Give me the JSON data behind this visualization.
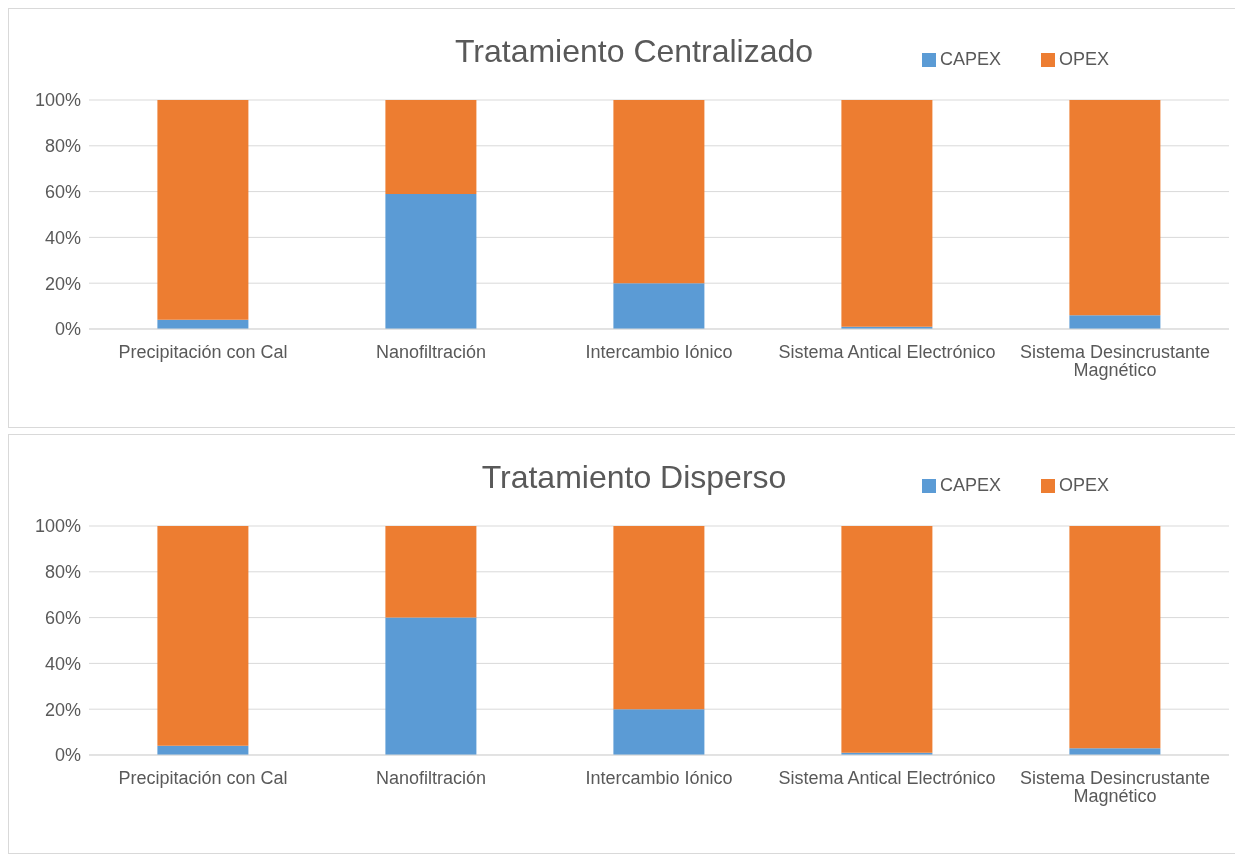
{
  "chart_data": [
    {
      "type": "bar",
      "title": "Tratamiento Centralizado",
      "stacked": true,
      "categories": [
        "Precipitación con Cal",
        "Nanofiltración",
        "Intercambio Iónico",
        "Sistema Antical Electrónico",
        "Sistema Desincrustante Magnético"
      ],
      "series": [
        {
          "name": "CAPEX",
          "color": "#5b9bd5",
          "values": [
            4,
            59,
            20,
            1,
            6
          ]
        },
        {
          "name": "OPEX",
          "color": "#ed7d31",
          "values": [
            96,
            41,
            80,
            99,
            94
          ]
        }
      ],
      "ylim": [
        0,
        100
      ],
      "yticks": [
        {
          "value": 0,
          "label": "0%"
        },
        {
          "value": 20,
          "label": "20%"
        },
        {
          "value": 40,
          "label": "40%"
        },
        {
          "value": 60,
          "label": "60%"
        },
        {
          "value": 80,
          "label": "80%"
        },
        {
          "value": 100,
          "label": "100%"
        }
      ],
      "grid": "y",
      "legend": "top right"
    },
    {
      "type": "bar",
      "title": "Tratamiento Disperso",
      "stacked": true,
      "categories": [
        "Precipitación con Cal",
        "Nanofiltración",
        "Intercambio Iónico",
        "Sistema Antical Electrónico",
        "Sistema Desincrustante Magnético"
      ],
      "series": [
        {
          "name": "CAPEX",
          "color": "#5b9bd5",
          "values": [
            4,
            60,
            20,
            1,
            3
          ]
        },
        {
          "name": "OPEX",
          "color": "#ed7d31",
          "values": [
            96,
            40,
            80,
            99,
            97
          ]
        }
      ],
      "ylim": [
        0,
        100
      ],
      "yticks": [
        {
          "value": 0,
          "label": "0%"
        },
        {
          "value": 20,
          "label": "20%"
        },
        {
          "value": 40,
          "label": "40%"
        },
        {
          "value": 60,
          "label": "60%"
        },
        {
          "value": 80,
          "label": "80%"
        },
        {
          "value": 100,
          "label": "100%"
        }
      ],
      "grid": "y",
      "legend": "top right"
    }
  ]
}
